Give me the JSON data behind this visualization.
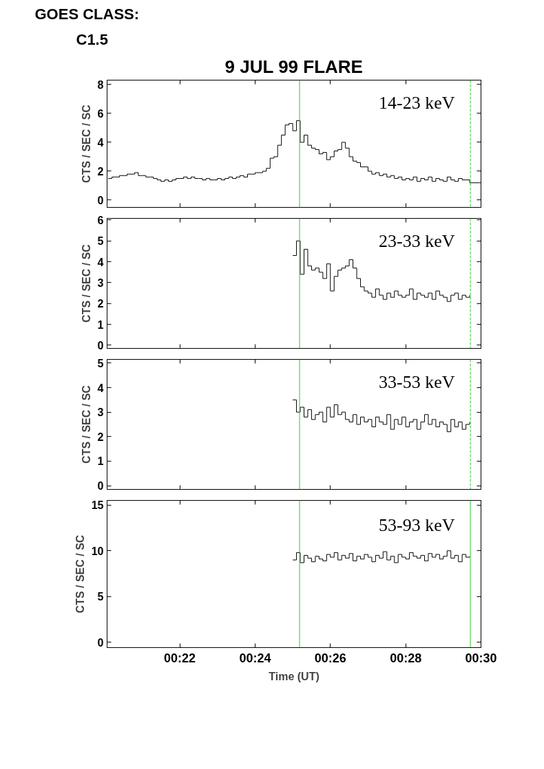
{
  "chart_data": [
    {
      "type": "step",
      "title": "9 JUL 99 FLARE",
      "annotations": [
        "GOES CLASS:",
        "C1.5"
      ],
      "ylabel": "CTS / SEC / SC",
      "xlim": [
        0.3345,
        0.5
      ],
      "ylim": [
        -0.5,
        8.3
      ],
      "yticks": [
        0,
        2,
        4,
        6,
        8
      ],
      "xticks": [
        {
          "value": 0.36667,
          "label": null
        },
        {
          "value": 0.4,
          "label": null
        },
        {
          "value": 0.43333,
          "label": null
        },
        {
          "value": 0.46667,
          "label": null
        },
        {
          "value": 0.5,
          "label": null
        }
      ],
      "tick_labels": "y",
      "grid": false,
      "ref_lines": [
        {
          "axis": "x",
          "value": 0.4197,
          "color": "#22cc22",
          "line_style": "solid"
        },
        {
          "axis": "x",
          "value": 0.4953,
          "color": "#22cc22",
          "line_style": "dashed"
        }
      ],
      "series": [
        {
          "name": "14-23 keV",
          "color": "#000000",
          "x": [
            0.335,
            0.33667,
            0.33833,
            0.34,
            0.34167,
            0.34333,
            0.345,
            0.34667,
            0.34833,
            0.35,
            0.35167,
            0.35333,
            0.355,
            0.35667,
            0.35833,
            0.36,
            0.36167,
            0.36333,
            0.365,
            0.36667,
            0.36833,
            0.37,
            0.37167,
            0.37333,
            0.375,
            0.37667,
            0.37833,
            0.38,
            0.38167,
            0.38333,
            0.385,
            0.38667,
            0.38833,
            0.39,
            0.39167,
            0.39333,
            0.395,
            0.39667,
            0.39833,
            0.4,
            0.40167,
            0.40333,
            0.405,
            0.40667,
            0.40833,
            0.41,
            0.41167,
            0.41333,
            0.415,
            0.41667,
            0.41833,
            0.42,
            0.42167,
            0.42333,
            0.425,
            0.42667,
            0.42833,
            0.43,
            0.43167,
            0.43333,
            0.435,
            0.43667,
            0.43833,
            0.44,
            0.44167,
            0.44333,
            0.445,
            0.44667,
            0.44833,
            0.45,
            0.45167,
            0.45333,
            0.455,
            0.45667,
            0.45833,
            0.46,
            0.46167,
            0.46333,
            0.465,
            0.46667,
            0.46833,
            0.47,
            0.47167,
            0.47333,
            0.475,
            0.47667,
            0.47833,
            0.48,
            0.48167,
            0.48333,
            0.485,
            0.48667,
            0.48833,
            0.49,
            0.49167,
            0.49333,
            0.495,
            0.5
          ],
          "values": [
            1.5,
            1.6,
            1.6,
            1.7,
            1.7,
            1.8,
            1.8,
            1.9,
            1.7,
            1.7,
            1.6,
            1.6,
            1.5,
            1.4,
            1.3,
            1.4,
            1.3,
            1.4,
            1.5,
            1.5,
            1.6,
            1.5,
            1.6,
            1.5,
            1.5,
            1.4,
            1.5,
            1.4,
            1.4,
            1.5,
            1.4,
            1.5,
            1.6,
            1.5,
            1.6,
            1.7,
            1.6,
            1.8,
            1.8,
            1.9,
            1.9,
            2.0,
            2.2,
            2.9,
            3.0,
            3.8,
            4.5,
            5.2,
            5.3,
            4.8,
            5.5,
            4.0,
            4.5,
            3.8,
            3.6,
            3.5,
            3.2,
            3.3,
            2.8,
            3.0,
            3.4,
            3.5,
            4.0,
            3.6,
            3.0,
            2.7,
            2.6,
            2.3,
            2.3,
            2.0,
            1.8,
            1.9,
            1.7,
            1.8,
            1.6,
            1.7,
            1.5,
            1.6,
            1.4,
            1.5,
            1.4,
            1.6,
            1.3,
            1.5,
            1.4,
            1.6,
            1.3,
            1.5,
            1.4,
            1.3,
            1.6,
            1.4,
            1.3,
            1.5,
            1.4,
            1.4,
            1.2,
            1.2
          ]
        }
      ]
    },
    {
      "type": "step",
      "ylabel": "CTS / SEC / SC",
      "xlim": [
        0.3345,
        0.5
      ],
      "ylim": [
        -0.15,
        6.08
      ],
      "yticks": [
        0,
        1,
        2,
        3,
        4,
        5,
        6
      ],
      "xticks": [
        {
          "value": 0.36667,
          "label": null
        },
        {
          "value": 0.4,
          "label": null
        },
        {
          "value": 0.43333,
          "label": null
        },
        {
          "value": 0.46667,
          "label": null
        },
        {
          "value": 0.5,
          "label": null
        }
      ],
      "tick_labels": "y",
      "grid": false,
      "ref_lines": [
        {
          "axis": "x",
          "value": 0.4197,
          "color": "#22cc22",
          "line_style": "solid"
        },
        {
          "axis": "x",
          "value": 0.4953,
          "color": "#22cc22",
          "line_style": "dashed"
        }
      ],
      "series": [
        {
          "name": "23-33 keV",
          "color": "#000000",
          "x": [
            0.41667,
            0.41833,
            0.42,
            0.42167,
            0.42333,
            0.425,
            0.42667,
            0.42833,
            0.43,
            0.43167,
            0.43333,
            0.435,
            0.43667,
            0.43833,
            0.44,
            0.44167,
            0.44333,
            0.445,
            0.44667,
            0.44833,
            0.45,
            0.45167,
            0.45333,
            0.455,
            0.45667,
            0.45833,
            0.46,
            0.46167,
            0.46333,
            0.465,
            0.46667,
            0.46833,
            0.47,
            0.47167,
            0.47333,
            0.475,
            0.47667,
            0.47833,
            0.48,
            0.48167,
            0.48333,
            0.485,
            0.48667,
            0.48833,
            0.49,
            0.49167,
            0.49333,
            0.495
          ],
          "values": [
            4.3,
            5.0,
            3.4,
            4.6,
            3.8,
            3.6,
            3.7,
            3.5,
            3.2,
            3.9,
            2.6,
            3.3,
            3.6,
            3.7,
            3.8,
            4.1,
            3.7,
            3.2,
            2.8,
            2.6,
            2.5,
            2.3,
            2.7,
            2.4,
            2.2,
            2.5,
            2.3,
            2.6,
            2.4,
            2.3,
            2.4,
            2.7,
            2.2,
            2.5,
            2.4,
            2.3,
            2.5,
            2.2,
            2.6,
            2.4,
            2.3,
            2.1,
            2.4,
            2.5,
            2.2,
            2.4,
            2.3,
            2.4
          ]
        }
      ]
    },
    {
      "type": "step",
      "ylabel": "CTS / SEC / SC",
      "xlim": [
        0.3345,
        0.5
      ],
      "ylim": [
        -0.15,
        5.15
      ],
      "yticks": [
        0,
        1,
        2,
        3,
        4,
        5
      ],
      "xticks": [
        {
          "value": 0.36667,
          "label": null
        },
        {
          "value": 0.4,
          "label": null
        },
        {
          "value": 0.43333,
          "label": null
        },
        {
          "value": 0.46667,
          "label": null
        },
        {
          "value": 0.5,
          "label": null
        }
      ],
      "tick_labels": "y",
      "grid": false,
      "ref_lines": [
        {
          "axis": "x",
          "value": 0.4197,
          "color": "#22cc22",
          "line_style": "solid"
        },
        {
          "axis": "x",
          "value": 0.4953,
          "color": "#22cc22",
          "line_style": "dashed"
        }
      ],
      "series": [
        {
          "name": "33-53 keV",
          "color": "#000000",
          "x": [
            0.41667,
            0.41833,
            0.42,
            0.42167,
            0.42333,
            0.425,
            0.42667,
            0.42833,
            0.43,
            0.43167,
            0.43333,
            0.435,
            0.43667,
            0.43833,
            0.44,
            0.44167,
            0.44333,
            0.445,
            0.44667,
            0.44833,
            0.45,
            0.45167,
            0.45333,
            0.455,
            0.45667,
            0.45833,
            0.46,
            0.46167,
            0.46333,
            0.465,
            0.46667,
            0.46833,
            0.47,
            0.47167,
            0.47333,
            0.475,
            0.47667,
            0.47833,
            0.48,
            0.48167,
            0.48333,
            0.485,
            0.48667,
            0.48833,
            0.49,
            0.49167,
            0.49333,
            0.495
          ],
          "values": [
            3.5,
            3.0,
            3.2,
            2.8,
            3.1,
            2.7,
            2.9,
            3.0,
            2.6,
            3.2,
            2.8,
            3.3,
            2.9,
            3.0,
            2.7,
            2.6,
            2.9,
            2.5,
            2.8,
            2.6,
            2.7,
            2.4,
            2.8,
            2.6,
            2.5,
            2.9,
            2.3,
            2.7,
            2.5,
            2.8,
            2.4,
            2.6,
            2.7,
            2.3,
            2.6,
            2.9,
            2.5,
            2.7,
            2.4,
            2.6,
            2.5,
            2.2,
            2.7,
            2.4,
            2.6,
            2.3,
            2.5,
            2.6
          ]
        }
      ]
    },
    {
      "type": "step",
      "xlabel": "Time (UT)",
      "ylabel": "CTS / SEC / SC",
      "xlim": [
        0.3345,
        0.5
      ],
      "ylim": [
        -0.57,
        15.5
      ],
      "yticks": [
        0,
        5,
        10,
        15
      ],
      "xticks": [
        {
          "value": 0.36667,
          "label": "00:22"
        },
        {
          "value": 0.4,
          "label": "00:24"
        },
        {
          "value": 0.43333,
          "label": "00:26"
        },
        {
          "value": 0.46667,
          "label": "00:28"
        },
        {
          "value": 0.5,
          "label": "00:30"
        }
      ],
      "grid": false,
      "ref_lines": [
        {
          "axis": "x",
          "value": 0.4197,
          "color": "#22cc22",
          "line_style": "solid"
        },
        {
          "axis": "x",
          "value": 0.4953,
          "color": "#22cc22",
          "line_style": "solid"
        }
      ],
      "series": [
        {
          "name": "53-93 keV",
          "color": "#000000",
          "x": [
            0.41667,
            0.41833,
            0.42,
            0.42167,
            0.42333,
            0.425,
            0.42667,
            0.42833,
            0.43,
            0.43167,
            0.43333,
            0.435,
            0.43667,
            0.43833,
            0.44,
            0.44167,
            0.44333,
            0.445,
            0.44667,
            0.44833,
            0.45,
            0.45167,
            0.45333,
            0.455,
            0.45667,
            0.45833,
            0.46,
            0.46167,
            0.46333,
            0.465,
            0.46667,
            0.46833,
            0.47,
            0.47167,
            0.47333,
            0.475,
            0.47667,
            0.47833,
            0.48,
            0.48167,
            0.48333,
            0.485,
            0.48667,
            0.48833,
            0.49,
            0.49167,
            0.49333,
            0.495
          ],
          "values": [
            9.0,
            9.8,
            8.7,
            9.5,
            9.2,
            8.8,
            9.4,
            9.1,
            8.9,
            9.6,
            9.3,
            9.8,
            9.0,
            9.5,
            9.2,
            9.7,
            8.9,
            9.4,
            9.1,
            9.6,
            9.3,
            8.8,
            9.5,
            9.2,
            9.9,
            9.0,
            9.4,
            8.7,
            9.6,
            9.3,
            9.1,
            9.8,
            9.4,
            9.2,
            9.5,
            8.9,
            9.7,
            9.3,
            9.6,
            9.1,
            9.4,
            10.0,
            9.2,
            9.5,
            8.8,
            9.6,
            9.3,
            9.4
          ]
        }
      ]
    }
  ]
}
